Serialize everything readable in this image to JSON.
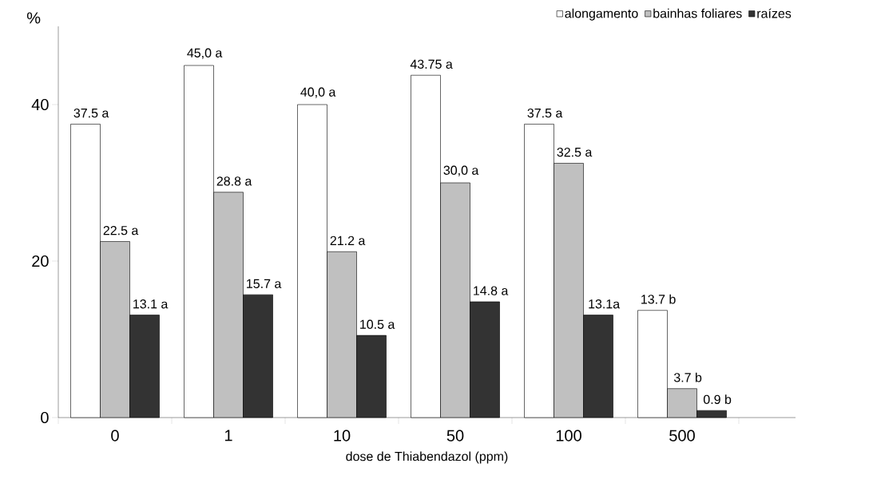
{
  "chart_data": {
    "type": "bar",
    "xlabel": "dose de Thiabendazol (ppm)",
    "ylabel": "%",
    "categories": [
      "0",
      "1",
      "10",
      "50",
      "100",
      "500"
    ],
    "series": [
      {
        "name": "alongamento",
        "color": "#ffffff",
        "values": [
          37.5,
          45.0,
          40.0,
          43.75,
          37.5,
          13.7
        ],
        "value_labels": [
          "37.5 a",
          "45,0 a",
          "40,0 a",
          "43.75 a",
          "37.5 a",
          "13.7 b"
        ]
      },
      {
        "name": "bainhas foliares",
        "color": "#c0c0c0",
        "values": [
          22.5,
          28.8,
          21.2,
          30.0,
          32.5,
          3.7
        ],
        "value_labels": [
          "22.5 a",
          "28.8 a",
          "21.2 a",
          "30,0 a",
          "32.5 a",
          "3.7 b"
        ]
      },
      {
        "name": "raízes",
        "color": "#333333",
        "values": [
          13.1,
          15.7,
          10.5,
          14.8,
          13.1,
          0.9
        ],
        "value_labels": [
          "13.1 a",
          "15.7 a",
          "10.5 a",
          "14.8 a",
          "13.1a",
          "0.9 b"
        ]
      }
    ],
    "ylim": [
      0,
      50
    ],
    "yticks": [
      0,
      20,
      40
    ],
    "grid": false,
    "legend": "top right"
  }
}
